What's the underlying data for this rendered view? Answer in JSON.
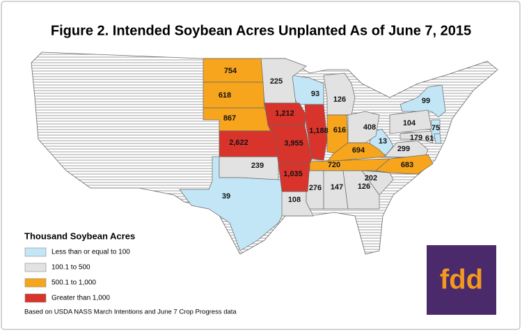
{
  "title": "Figure 2. Intended Soybean Acres Unplanted As of June 7, 2015",
  "legend": {
    "title": "Thousand Soybean Acres",
    "items": [
      {
        "label": "Less than or equal to 100",
        "color": "#c3e6f6",
        "values": [
          "93",
          "99",
          "75",
          "61",
          "13",
          "39"
        ]
      },
      {
        "label": "100.1 to 500",
        "color": "#e2e2e2",
        "values": [
          "225",
          "126",
          "408",
          "104",
          "179",
          "299",
          "239",
          "108",
          "276",
          "147",
          "126",
          "202"
        ]
      },
      {
        "label": "500.1 to 1,000",
        "color": "#f7a51c",
        "values": [
          "754",
          "618",
          "867",
          "616",
          "694",
          "720",
          "683"
        ]
      },
      {
        "label": "Greater than 1,000",
        "color": "#d9342c",
        "values": [
          "1,212",
          "1,188",
          "3,955",
          "2,622",
          "1,035"
        ]
      }
    ]
  },
  "note": "Based on USDA NASS March Intentions and June 7 Crop Progress data",
  "logo": "fdd"
}
